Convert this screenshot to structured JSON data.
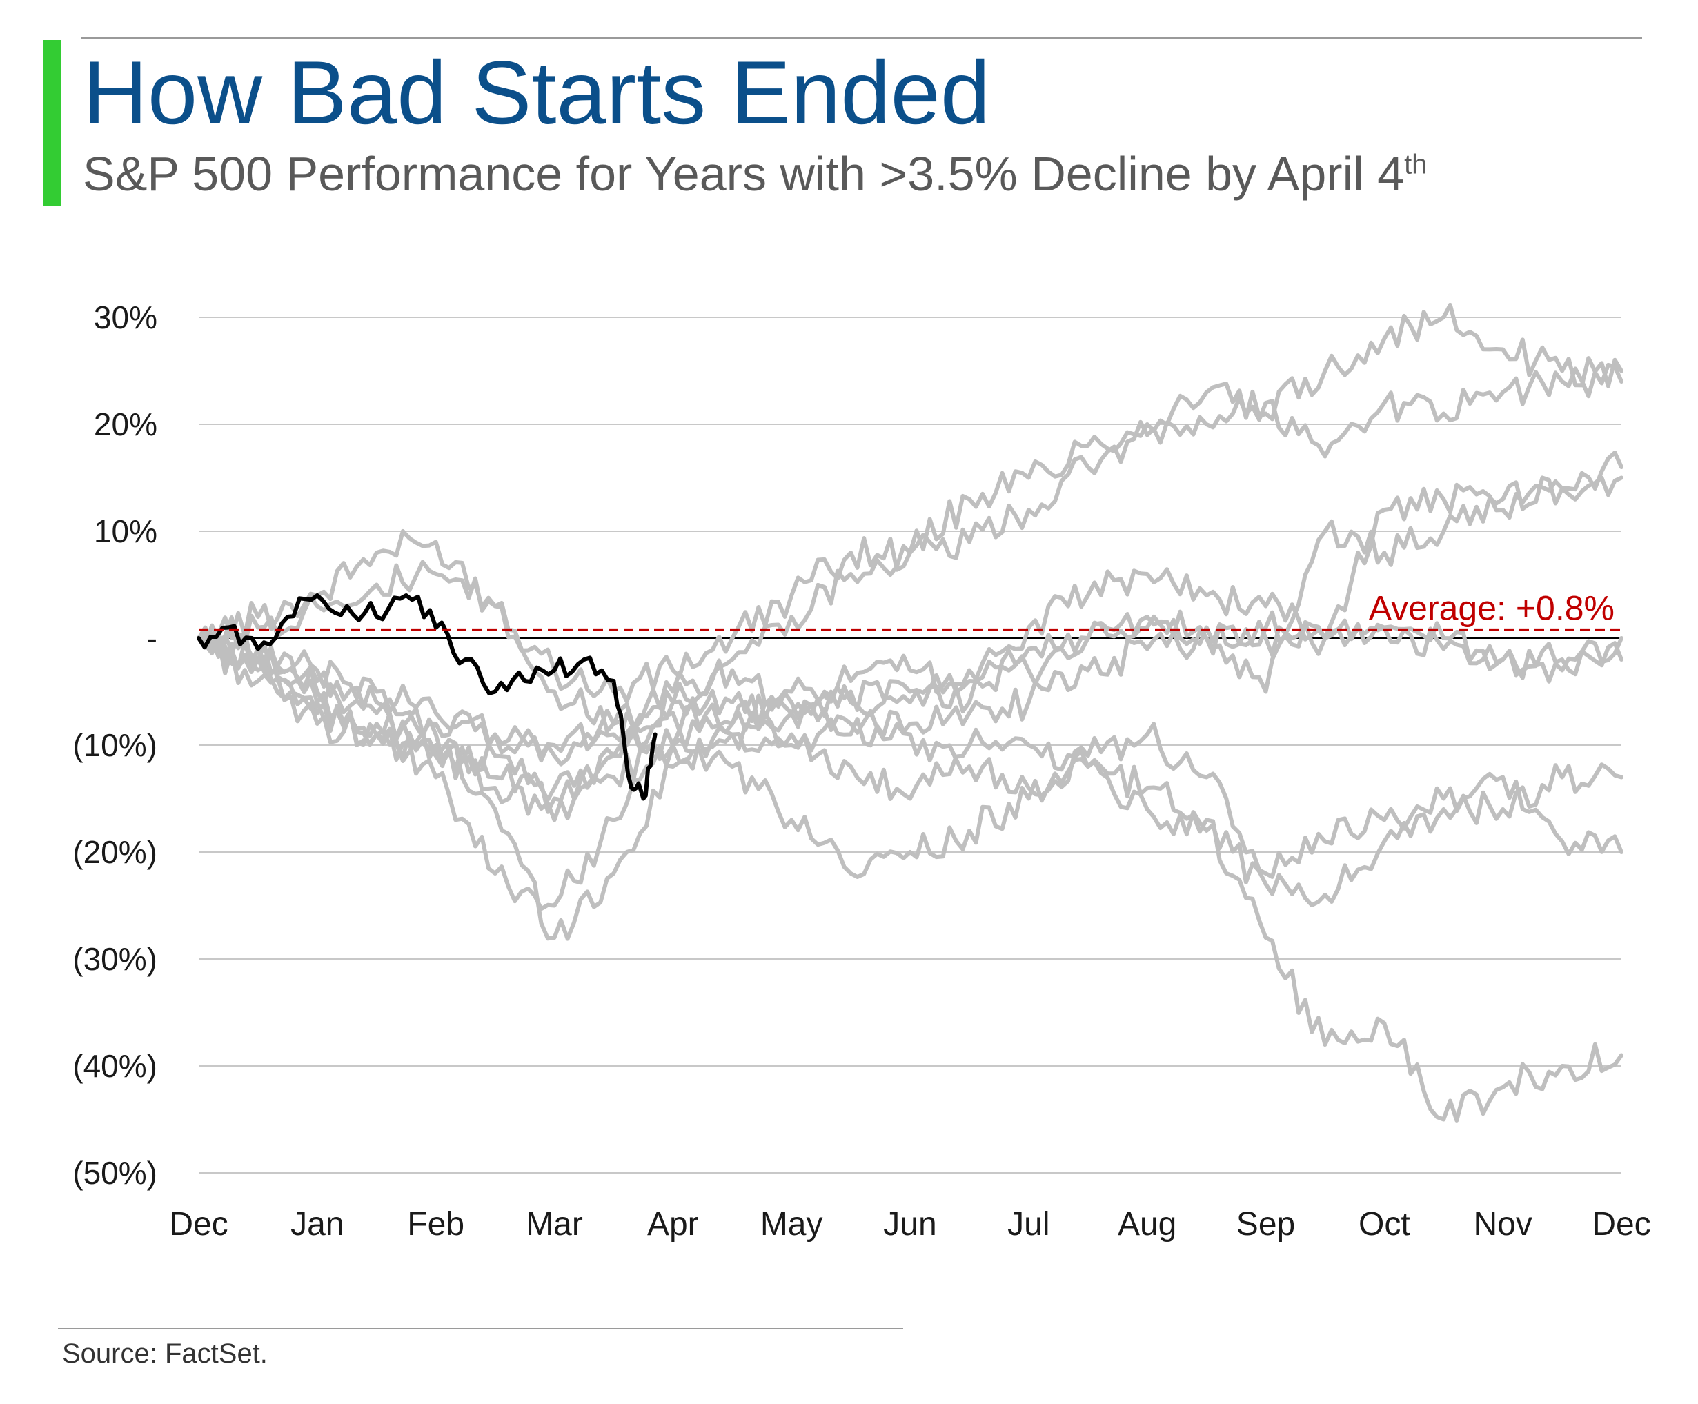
{
  "header": {
    "title": "How Bad Starts Ended",
    "subtitle": "S&P 500 Performance for Years with >3.5% Decline by April 4",
    "subtitle_superscript": "th"
  },
  "footer": {
    "source": "Source: FactSet."
  },
  "colors": {
    "title": "#0b4f8a",
    "accent_bar": "#33cc33",
    "history_lines": "#bfbfbf",
    "current_line": "#000000",
    "average_line": "#c00000",
    "gridline": "#c8c8c8",
    "zero_line": "#000000"
  },
  "chart_data": {
    "type": "line",
    "title": "How Bad Starts Ended",
    "subtitle": "S&P 500 Performance for Years with >3.5% Decline by April 4th",
    "xlabel": "",
    "ylabel": "",
    "x_ticks": [
      "Dec",
      "Jan",
      "Feb",
      "Mar",
      "Apr",
      "May",
      "Jun",
      "Jul",
      "Aug",
      "Sep",
      "Oct",
      "Nov",
      "Dec"
    ],
    "x_range": [
      0,
      12
    ],
    "y_ticks": [
      {
        "value": 30,
        "label": "30%"
      },
      {
        "value": 20,
        "label": "20%"
      },
      {
        "value": 10,
        "label": "10%"
      },
      {
        "value": 0,
        "label": "-"
      },
      {
        "value": -10,
        "label": "(10%)"
      },
      {
        "value": -20,
        "label": "(20%)"
      },
      {
        "value": -30,
        "label": "(30%)"
      },
      {
        "value": -40,
        "label": "(40%)"
      },
      {
        "value": -50,
        "label": "(50%)"
      }
    ],
    "ylim": [
      -50,
      30
    ],
    "grid": true,
    "average": {
      "value": 0.8,
      "label": "Average: +0.8%"
    },
    "series": [
      {
        "x": [
          0,
          0.5,
          1,
          1.5,
          2,
          2.5,
          3,
          3.5,
          4,
          4.5,
          5,
          5.5,
          6,
          6.5,
          7,
          7.5,
          8,
          8.5,
          9,
          9.5,
          10,
          10.5,
          11,
          11.5,
          12
        ],
        "values": [
          0,
          2,
          4,
          8,
          9,
          3,
          -3,
          -5,
          -3,
          0,
          4,
          8,
          8,
          13,
          15,
          18,
          20,
          23,
          21,
          25,
          28,
          30,
          27,
          25,
          25
        ]
      },
      {
        "x": [
          0,
          0.5,
          1,
          1.5,
          2,
          2.5,
          3,
          3.5,
          4,
          4.5,
          5,
          5.5,
          6,
          6.5,
          7,
          7.5,
          8,
          8.5,
          9,
          9.5,
          10,
          10.5,
          11,
          11.5,
          12
        ],
        "values": [
          0,
          -2,
          -4,
          -7,
          -10,
          -14,
          -17,
          -11,
          -6,
          -2,
          2,
          6,
          8,
          9,
          12,
          16,
          19,
          20,
          22,
          17,
          22,
          21,
          23,
          24,
          24
        ]
      },
      {
        "x": [
          0,
          0.5,
          1,
          1.5,
          2,
          2.5,
          3,
          3.5,
          4,
          4.5,
          5,
          5.5,
          6,
          6.5,
          7,
          7.5,
          8,
          8.5,
          9,
          9.5,
          10,
          10.5,
          11,
          11.5,
          12
        ],
        "values": [
          0,
          -4,
          -8,
          -9,
          -13,
          -22,
          -25,
          -17,
          -10,
          -8,
          -5,
          -4,
          -3,
          -4,
          -3,
          0,
          2,
          0,
          -5,
          10,
          8,
          10,
          13,
          14,
          16
        ]
      },
      {
        "x": [
          0,
          0.5,
          1,
          1.5,
          2,
          2.5,
          3,
          3.5,
          4,
          4.5,
          5,
          5.5,
          6,
          6.5,
          7,
          7.5,
          8,
          8.5,
          9,
          9.5,
          10,
          10.5,
          11,
          11.5,
          12
        ],
        "values": [
          0,
          -1,
          -5,
          -6,
          -9,
          -16,
          -28,
          -22,
          -12,
          -9,
          -7,
          -5,
          -6,
          -3,
          1,
          4,
          6,
          4,
          3,
          0,
          12,
          13,
          12,
          14,
          15
        ]
      },
      {
        "x": [
          0,
          0.5,
          1,
          1.5,
          2,
          2.5,
          3,
          3.5,
          4,
          4.5,
          5,
          5.5,
          6,
          6.5,
          7,
          7.5,
          8,
          8.5,
          9,
          9.5,
          10,
          10.5,
          11,
          11.5,
          12
        ],
        "values": [
          0,
          -2,
          -6,
          -8,
          -8,
          -9,
          -10,
          -8,
          -5,
          -3,
          -6,
          -8,
          -9,
          -12,
          -14,
          -11,
          -9,
          -13,
          -22,
          -19,
          -17,
          -15,
          -13,
          -19,
          -20
        ]
      },
      {
        "x": [
          0,
          0.5,
          1,
          1.5,
          2,
          2.5,
          3,
          3.5,
          4,
          4.5,
          5,
          5.5,
          6,
          6.5,
          7,
          7.5,
          8,
          8.5,
          9,
          9.5,
          10,
          10.5,
          11,
          11.5,
          12
        ],
        "values": [
          0,
          -3,
          -7,
          -9,
          -11,
          -11,
          -14,
          -13,
          -10,
          -9,
          -10,
          -12,
          -15,
          -10,
          -10,
          -12,
          -16,
          -18,
          -23,
          -24,
          -19,
          -16,
          -16,
          -13,
          -13
        ]
      },
      {
        "x": [
          0,
          0.5,
          1,
          1.5,
          2,
          2.5,
          3,
          3.5,
          4,
          4.5,
          5,
          5.5,
          6,
          6.5,
          7,
          7.5,
          8,
          8.5,
          9,
          9.5,
          10,
          10.5,
          11,
          11.5,
          12
        ],
        "values": [
          0,
          1,
          3,
          5,
          6,
          3,
          -5,
          -8,
          -10,
          -12,
          -17,
          -22,
          -20,
          -18,
          -15,
          -12,
          -14,
          -17,
          -28,
          -38,
          -36,
          -45,
          -42,
          -40,
          -39
        ]
      },
      {
        "x": [
          0,
          0.5,
          1,
          1.5,
          2,
          2.5,
          3,
          3.5,
          4,
          4.5,
          5,
          5.5,
          6,
          6.5,
          7,
          7.5,
          8,
          8.5,
          9,
          9.5,
          10,
          10.5,
          11,
          11.5,
          12
        ],
        "values": [
          0,
          -2,
          -6,
          -9,
          -11,
          -13,
          -15,
          -11,
          -6,
          -6,
          -7,
          -6,
          -5,
          -6,
          -1,
          0,
          1,
          1,
          0,
          0,
          1,
          -1,
          -2,
          -2,
          -2
        ]
      },
      {
        "x": [
          0,
          0.5,
          1,
          1.5,
          2,
          2.5,
          3,
          3.5,
          4,
          4.5,
          5,
          5.5,
          6,
          6.5,
          7,
          7.5,
          8,
          8.5,
          9,
          9.5,
          10,
          10.5,
          11,
          11.5,
          12
        ],
        "values": [
          0,
          -1,
          -3,
          -5,
          -7,
          -9,
          -11,
          -9,
          -7,
          -8,
          -9,
          -9,
          -8,
          -7,
          -6,
          -3,
          -1,
          0,
          1,
          0,
          1,
          0,
          -2,
          -3,
          0
        ]
      },
      {
        "name": "current",
        "current": true,
        "x": [
          0,
          0.25,
          0.5,
          0.75,
          1.0,
          1.25,
          1.5,
          1.75,
          2.0,
          2.25,
          2.5,
          2.75,
          3.0,
          3.25,
          3.5,
          3.65,
          3.75,
          3.85
        ],
        "values": [
          0,
          1,
          -1,
          2,
          4,
          3,
          2,
          4,
          1,
          -2,
          -5,
          -4,
          -3,
          -2,
          -4,
          -14,
          -15,
          -9
        ]
      }
    ]
  }
}
